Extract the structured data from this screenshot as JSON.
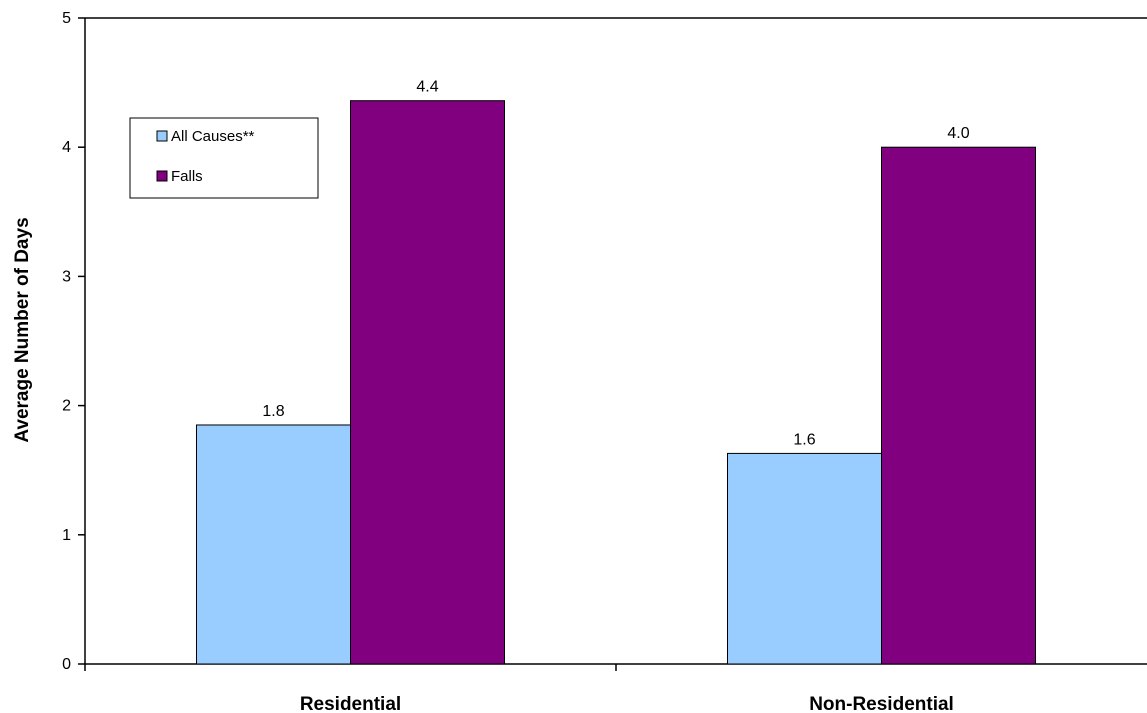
{
  "chart_data": {
    "type": "bar",
    "categories": [
      "Residential",
      "Non-Residential"
    ],
    "series": [
      {
        "name": "All Causes**",
        "values": [
          1.8,
          1.6
        ],
        "color": "#99ccff"
      },
      {
        "name": "Falls",
        "values": [
          4.4,
          4.0
        ],
        "color": "#800080"
      }
    ],
    "value_labels": [
      [
        "1.8",
        "1.6"
      ],
      [
        "4.4",
        "4.0"
      ]
    ],
    "bar_values": [
      [
        1.85,
        1.63
      ],
      [
        4.36,
        4.0
      ]
    ],
    "xlabel": "",
    "ylabel": "Average Number of Days",
    "ylim": [
      0,
      5
    ],
    "yticks": [
      "0",
      "1",
      "2",
      "3",
      "4",
      "5"
    ],
    "grid": false,
    "legend_position": "top-left"
  }
}
